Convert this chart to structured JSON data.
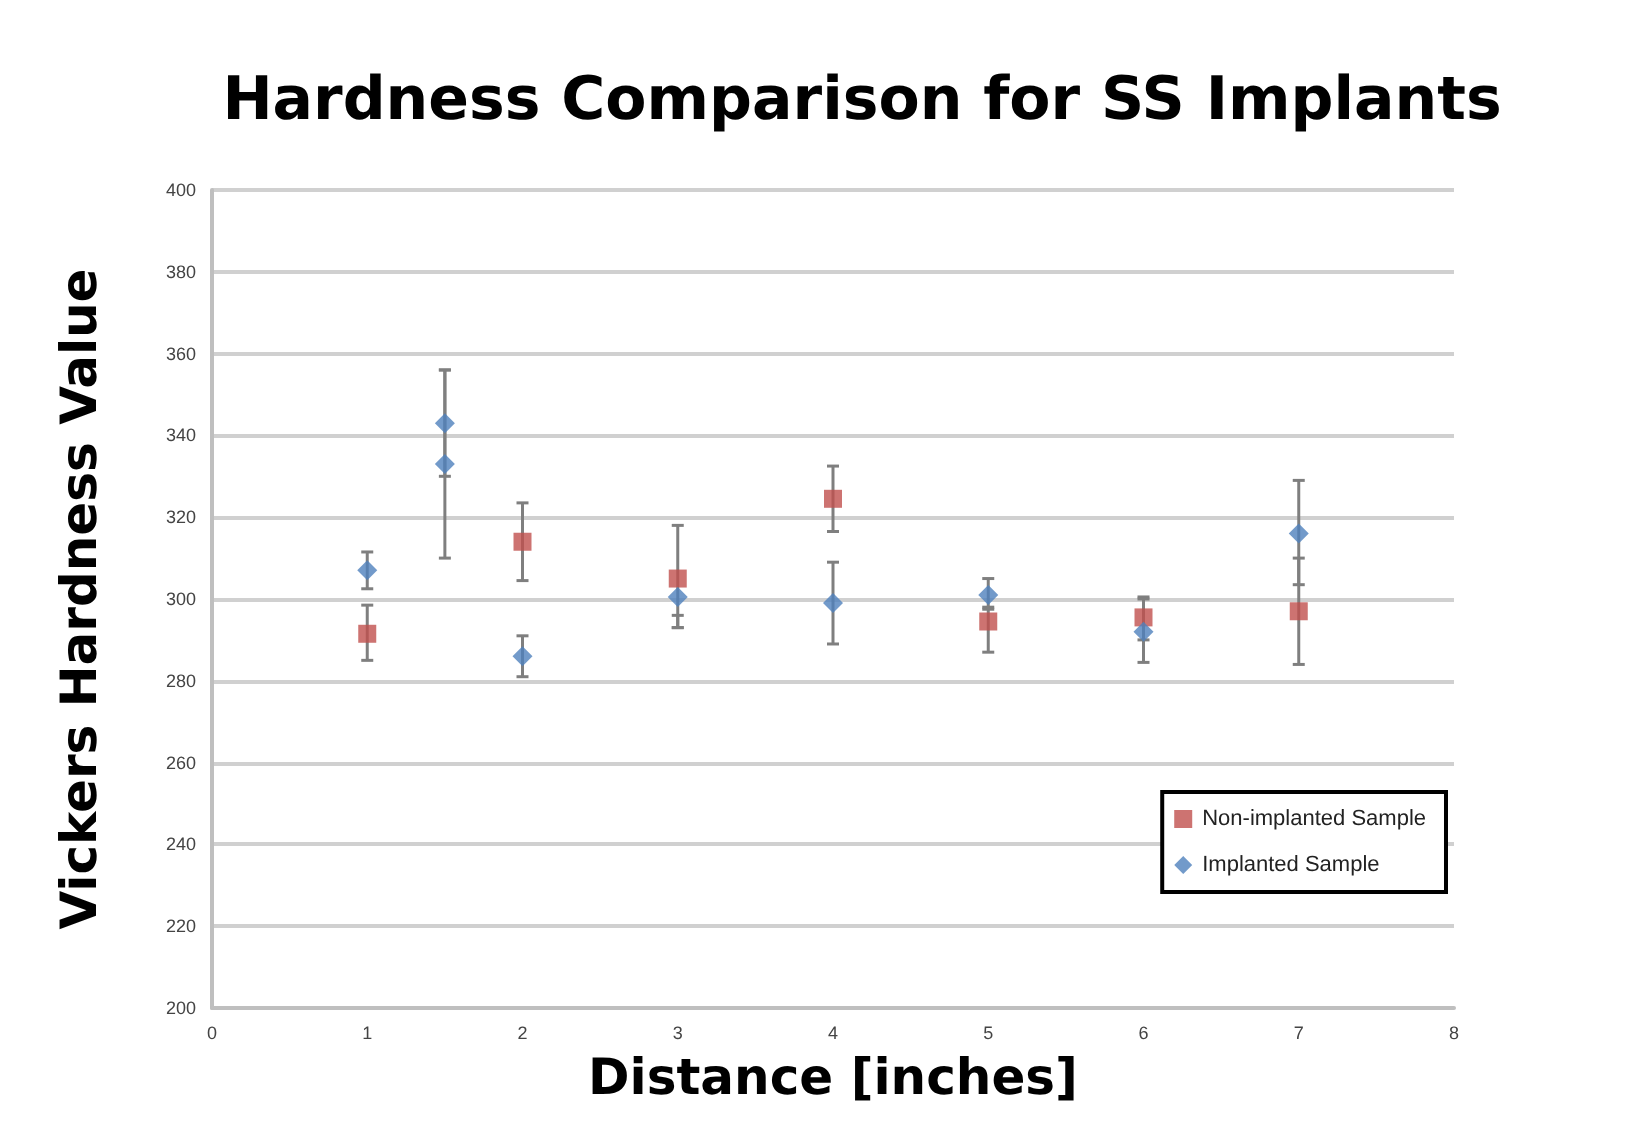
{
  "chart_data": {
    "type": "scatter",
    "title": "Hardness Comparison for SS Implants",
    "xlabel": "Distance [inches]",
    "ylabel": "Vickers Hardness Value",
    "xlim": [
      0,
      8
    ],
    "xticks": [
      0,
      1,
      2,
      3,
      4,
      5,
      6,
      7,
      8
    ],
    "ylim": [
      200,
      400
    ],
    "yticks": [
      200,
      220,
      240,
      260,
      280,
      300,
      320,
      340,
      360,
      380,
      400
    ],
    "grid": "y",
    "legend": "bottom right",
    "series": [
      {
        "name": "Non-implanted Sample",
        "color": "#c0504d",
        "marker": "square",
        "x": [
          1,
          2,
          3,
          4,
          5,
          6,
          7
        ],
        "values": [
          291.5,
          314,
          305,
          324.5,
          294.5,
          295.5,
          297
        ],
        "errors": [
          [
            285,
            298.5
          ],
          [
            304.5,
            323.5
          ],
          [
            293,
            318
          ],
          [
            316.5,
            332.5
          ],
          [
            287,
            298
          ],
          [
            290,
            300.5
          ],
          [
            284,
            310
          ]
        ]
      },
      {
        "name": "Implanted Sample",
        "color": "#4f81bd",
        "marker": "diamond",
        "x": [
          1,
          1.5,
          1.5,
          2,
          3,
          4,
          5,
          6,
          7
        ],
        "values": [
          307,
          343,
          333,
          286,
          300.5,
          299,
          301,
          292,
          316
        ],
        "errors": [
          [
            302.5,
            311.5
          ],
          [
            330,
            356
          ],
          [
            310,
            356
          ],
          [
            281,
            291
          ],
          [
            293,
            296
          ],
          [
            289,
            309
          ],
          [
            297.5,
            305
          ],
          [
            284.5,
            300
          ],
          [
            303.5,
            329
          ]
        ]
      }
    ]
  }
}
